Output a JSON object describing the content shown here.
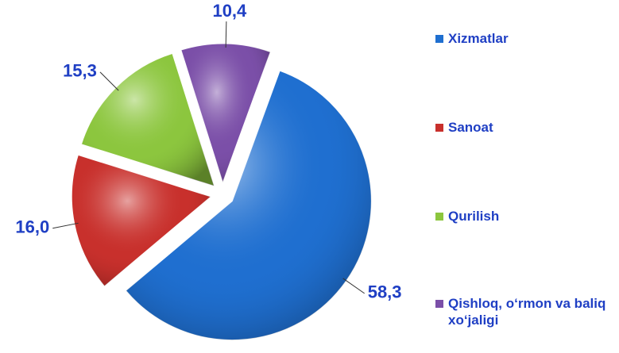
{
  "chart_data": {
    "type": "pie",
    "categories": [
      "Xizmatlar",
      "Sanoat",
      "Qurilish",
      "Qishloq, o‘rmon va baliq xo‘jaligi"
    ],
    "values": [
      58.3,
      16.0,
      15.3,
      10.4
    ],
    "value_labels": [
      "58,3",
      "16,0",
      "15,3",
      "10,4"
    ],
    "colors": [
      "#1f6fd0",
      "#c8302c",
      "#8cc63e",
      "#7b4fa8"
    ],
    "legend": "right"
  }
}
